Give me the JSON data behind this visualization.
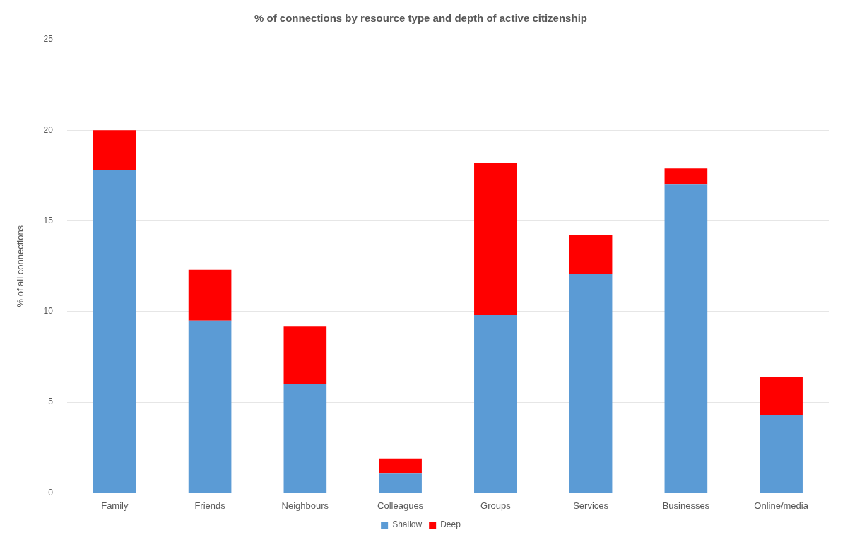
{
  "chart_data": {
    "type": "bar",
    "title": "% of connections by resource type and depth of active citizenship",
    "ylabel": "% of all connections",
    "categories": [
      "Family",
      "Friends",
      "Neighbours",
      "Colleagues",
      "Groups",
      "Services",
      "Businesses",
      "Online/media"
    ],
    "series": [
      {
        "name": "Shallow",
        "color": "#5b9bd5",
        "values": [
          17.8,
          9.5,
          6.0,
          1.1,
          9.8,
          12.1,
          17.0,
          4.3
        ]
      },
      {
        "name": "Deep",
        "color": "#ff0000",
        "values": [
          2.2,
          2.8,
          3.2,
          0.8,
          8.4,
          2.1,
          0.9,
          2.1
        ]
      }
    ],
    "stacked": true,
    "ylim": [
      0,
      25
    ],
    "yticks": [
      0,
      5,
      10,
      15,
      20,
      25
    ],
    "grid": "y",
    "legend": "bottom"
  }
}
